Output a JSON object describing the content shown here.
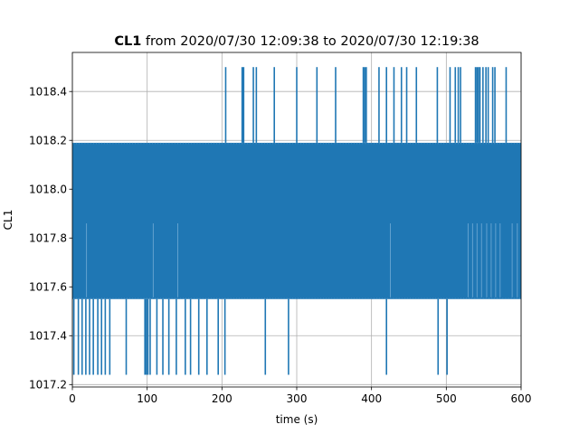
{
  "chart_data": {
    "type": "line",
    "title": {
      "bold": "CL1",
      "rest": " from 2020/07/30 12:09:38 to 2020/07/30 12:19:38"
    },
    "xlabel": "time (s)",
    "ylabel": "CL1",
    "xlim": [
      0,
      600
    ],
    "ylim": [
      1017.19,
      1018.56
    ],
    "x_ticks": [
      0,
      100,
      200,
      300,
      400,
      500,
      600
    ],
    "x_tick_labels": [
      "0",
      "100",
      "200",
      "300",
      "400",
      "500",
      "600"
    ],
    "y_ticks": [
      1017.2,
      1017.4,
      1017.6,
      1017.8,
      1018.0,
      1018.2,
      1018.4
    ],
    "y_tick_labels": [
      "1017.2",
      "1017.4",
      "1017.6",
      "1017.8",
      "1018.0",
      "1018.2",
      "1018.4"
    ],
    "grid": true,
    "series": [
      {
        "color": "#1f77b4",
        "band": {
          "x_start": 0,
          "x_end": 600,
          "y_low": 1017.55,
          "y_high": 1018.19
        },
        "upper_spikes": {
          "y": 1018.5,
          "x": [
            205,
            227,
            229,
            242,
            246,
            270,
            300,
            327,
            352,
            389,
            391,
            393,
            410,
            420,
            430,
            440,
            447,
            460,
            488,
            505,
            512,
            516,
            519,
            539,
            541,
            543,
            545,
            549,
            553,
            556,
            562,
            565,
            580
          ]
        },
        "lower_spikes": {
          "y": 1017.24,
          "x": [
            2,
            8,
            13,
            18,
            23,
            28,
            34,
            39,
            44,
            50,
            72,
            97,
            99,
            101,
            104,
            113,
            121,
            129,
            139,
            151,
            158,
            169,
            180,
            195,
            204,
            258,
            289,
            420,
            489,
            501
          ]
        },
        "dips_to_mid": {
          "y": 1017.86,
          "x": [
            19,
            108,
            141,
            425,
            529,
            535,
            541,
            547,
            554,
            560,
            566,
            572,
            588,
            595
          ]
        }
      }
    ]
  }
}
